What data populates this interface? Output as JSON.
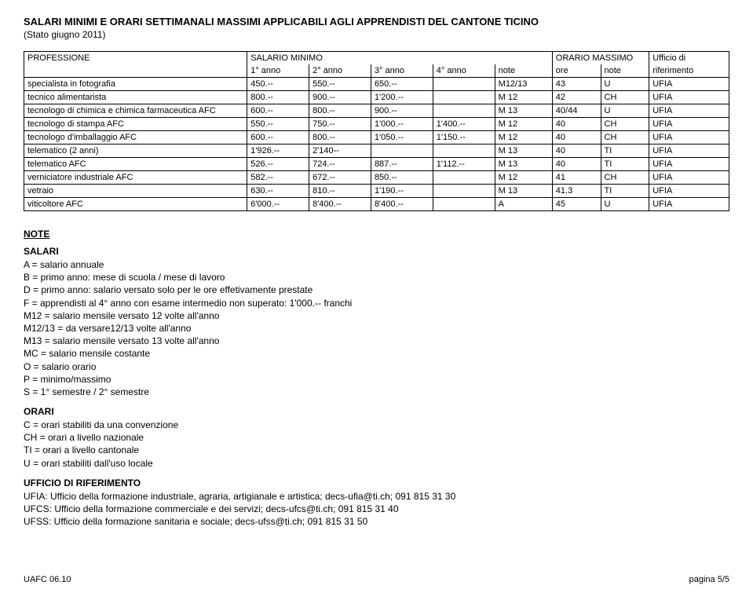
{
  "title": "SALARI MINIMI E ORARI SETTIMANALI MASSIMI APPLICABILI AGLI APPRENDISTI DEL CANTONE TICINO",
  "subtitle": "(Stato giugno 2011)",
  "headers": {
    "professione": "PROFESSIONE",
    "salario_minimo": "SALARIO MINIMO",
    "orario_massimo": "ORARIO MASSIMO",
    "ufficio": "Ufficio di",
    "anno1": "1° anno",
    "anno2": "2° anno",
    "anno3": "3° anno",
    "anno4": "4° anno",
    "note": "note",
    "ore": "ore",
    "note2": "note",
    "riferimento": "riferimento"
  },
  "rows": [
    {
      "prof": "specialista in fotografia",
      "a1": "450.--",
      "a2": "550.--",
      "a3": "650.--",
      "a4": "",
      "note": "M12/13",
      "ore": "43",
      "note2": "U",
      "rif": "UFIA"
    },
    {
      "prof": "tecnico alimentarista",
      "a1": "800.--",
      "a2": "900.--",
      "a3": "1'200.--",
      "a4": "",
      "note": "M 12",
      "ore": "42",
      "note2": "CH",
      "rif": "UFIA"
    },
    {
      "prof": "tecnologo di chimica e chimica farmaceutica AFC",
      "a1": "600.--",
      "a2": "800.--",
      "a3": "900.--",
      "a4": "",
      "note": "M 13",
      "ore": "40/44",
      "note2": "U",
      "rif": "UFIA"
    },
    {
      "prof": "tecnologo di stampa AFC",
      "a1": "550.--",
      "a2": "750.--",
      "a3": "1'000.--",
      "a4": "1'400.--",
      "note": "M 12",
      "ore": "40",
      "note2": "CH",
      "rif": "UFIA"
    },
    {
      "prof": "tecnologo d'imballaggio AFC",
      "a1": "600.--",
      "a2": "800.--",
      "a3": "1'050.--",
      "a4": "1'150.--",
      "note": "M 12",
      "ore": "40",
      "note2": "CH",
      "rif": "UFIA"
    },
    {
      "prof": "telematico (2 anni)",
      "a1": "1'926.--",
      "a2": "2'140--",
      "a3": "",
      "a4": "",
      "note": "M 13",
      "ore": "40",
      "note2": "TI",
      "rif": "UFIA"
    },
    {
      "prof": "telematico AFC",
      "a1": "526.--",
      "a2": "724.--",
      "a3": "887.--",
      "a4": "1'112.--",
      "note": "M 13",
      "ore": "40",
      "note2": "TI",
      "rif": "UFIA"
    },
    {
      "prof": "verniciatore industriale AFC",
      "a1": "582.--",
      "a2": "672.--",
      "a3": "850.--",
      "a4": "",
      "note": "M 12",
      "ore": "41",
      "note2": "CH",
      "rif": "UFIA"
    },
    {
      "prof": "vetraio",
      "a1": "630.--",
      "a2": "810.--",
      "a3": "1'190.--",
      "a4": "",
      "note": "M 13",
      "ore": "41.3",
      "note2": "TI",
      "rif": "UFIA"
    },
    {
      "prof": "viticoltore AFC",
      "a1": "6'000.--",
      "a2": "8'400.--",
      "a3": "8'400.--",
      "a4": "",
      "note": "A",
      "ore": "45",
      "note2": "U",
      "rif": "UFIA"
    }
  ],
  "notes": {
    "heading_note": "NOTE",
    "heading_salari": "SALARI",
    "salari_lines": [
      "A = salario annuale",
      "B = primo anno: mese di scuola / mese di lavoro",
      "D = primo anno: salario versato solo per le ore effetivamente prestate",
      "F = apprendisti al 4° anno con esame intermedio non superato: 1'000.-- franchi",
      "M12 = salario mensile versato 12 volte all'anno",
      "M12/13 = da versare12/13 volte all'anno",
      "M13 = salario mensile versato 13 volte all'anno",
      "MC = salario mensile costante",
      "O = salario orario",
      "P = minimo/massimo",
      "S = 1° semestre / 2° semestre"
    ],
    "heading_orari": "ORARI",
    "orari_lines": [
      "C = orari stabiliti da una convenzione",
      "CH = orari a livello nazionale",
      "TI = orari a livello cantonale",
      "U = orari stabiliti dall'uso locale"
    ],
    "heading_ufficio": "UFFICIO DI RIFERIMENTO",
    "ufficio_lines": [
      "UFIA: Ufficio della formazione industriale, agraria, artigianale e artistica; decs-ufia@ti.ch; 091 815 31 30",
      "UFCS: Ufficio della formazione commerciale e dei servizi; decs-ufcs@ti.ch; 091 815 31 40",
      "UFSS: Ufficio della formazione sanitaria e sociale; decs-ufss@ti.ch; 091 815 31 50"
    ]
  },
  "footer": {
    "left": "UAFC 06.10",
    "right": "pagina 5/5"
  }
}
